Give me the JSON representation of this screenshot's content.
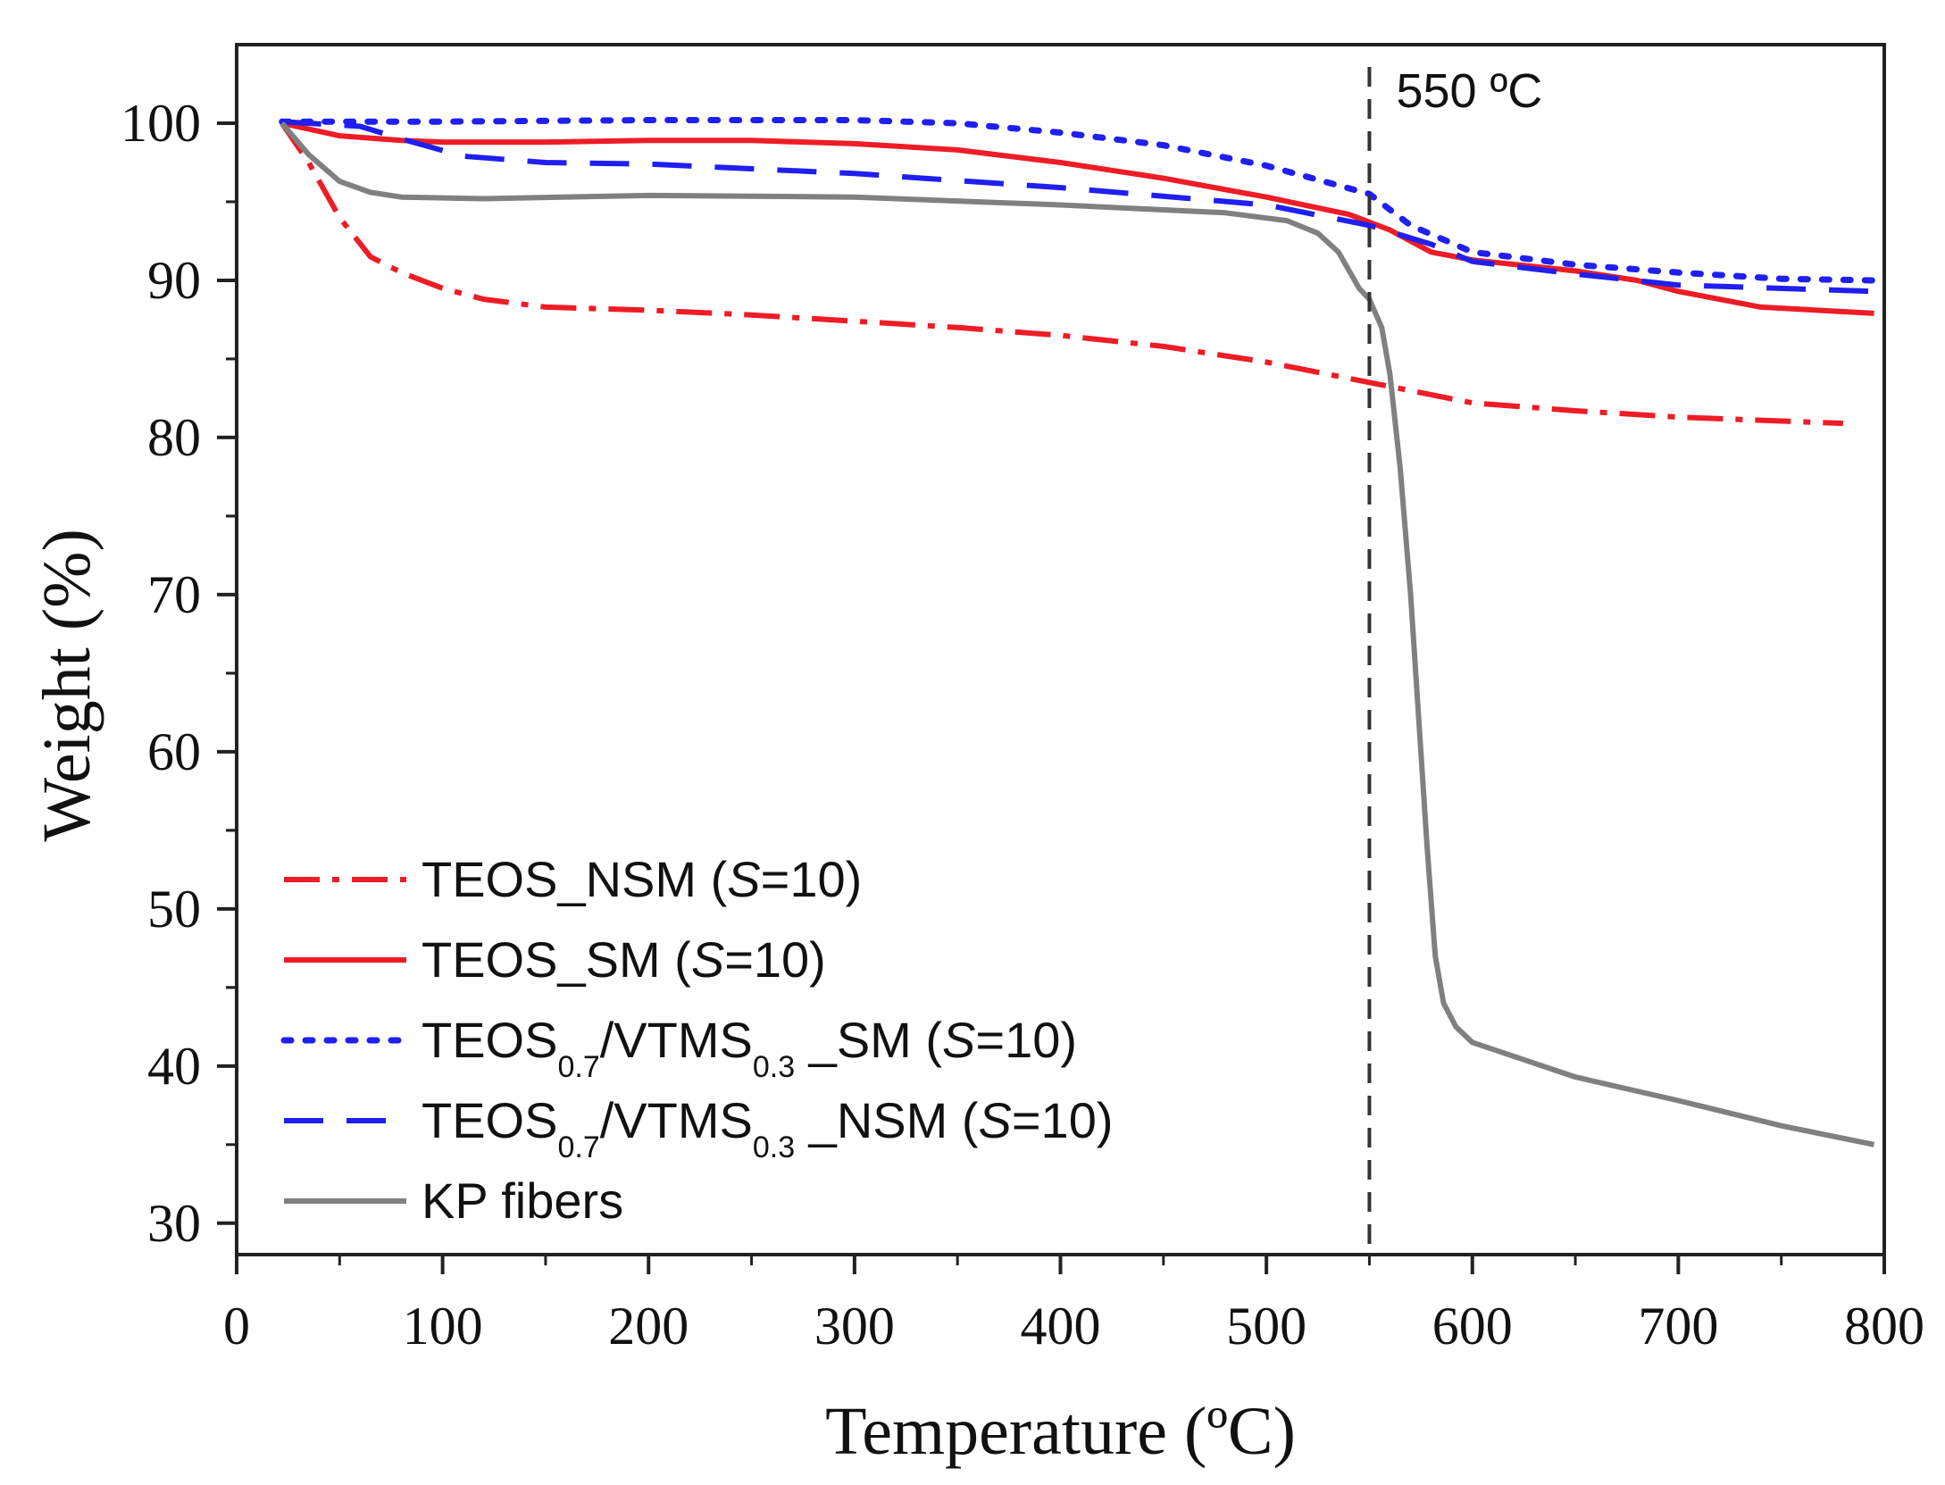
{
  "chart_data": {
    "type": "line",
    "title": "",
    "xlabel": "Temperature (ºC)",
    "ylabel": "Weight (%)",
    "xlim": [
      0,
      800
    ],
    "ylim": [
      28,
      105
    ],
    "xticks": [
      0,
      100,
      200,
      300,
      400,
      500,
      600,
      700,
      800
    ],
    "yticks": [
      30,
      40,
      50,
      60,
      70,
      80,
      90,
      100
    ],
    "grid": false,
    "legend_position": "bottom-left",
    "annotation": {
      "label": "550 ºC",
      "x": 550
    },
    "series": [
      {
        "name": "TEOS_NSM (S=10)",
        "legend": {
          "base": "TEOS_NSM (",
          "italic": "S",
          "rest": "=10)"
        },
        "color": "#ee1c25",
        "dash": "dashdot",
        "points": [
          [
            22,
            100
          ],
          [
            35,
            97.5
          ],
          [
            50,
            94
          ],
          [
            65,
            91.5
          ],
          [
            80,
            90.5
          ],
          [
            100,
            89.5
          ],
          [
            120,
            88.8
          ],
          [
            150,
            88.3
          ],
          [
            200,
            88.1
          ],
          [
            250,
            87.8
          ],
          [
            300,
            87.4
          ],
          [
            350,
            87
          ],
          [
            400,
            86.5
          ],
          [
            450,
            85.8
          ],
          [
            500,
            84.8
          ],
          [
            550,
            83.5
          ],
          [
            600,
            82.2
          ],
          [
            650,
            81.7
          ],
          [
            700,
            81.3
          ],
          [
            780,
            80.9
          ]
        ]
      },
      {
        "name": "TEOS_SM (S=10)",
        "legend": {
          "base": "TEOS_SM (",
          "italic": "S",
          "rest": "=10)"
        },
        "color": "#ee1c25",
        "dash": "solid",
        "points": [
          [
            22,
            100
          ],
          [
            50,
            99.2
          ],
          [
            80,
            98.9
          ],
          [
            100,
            98.8
          ],
          [
            150,
            98.8
          ],
          [
            200,
            98.9
          ],
          [
            250,
            98.9
          ],
          [
            300,
            98.7
          ],
          [
            350,
            98.3
          ],
          [
            400,
            97.5
          ],
          [
            450,
            96.5
          ],
          [
            500,
            95.3
          ],
          [
            540,
            94.2
          ],
          [
            560,
            93.2
          ],
          [
            580,
            91.8
          ],
          [
            600,
            91.3
          ],
          [
            650,
            90.6
          ],
          [
            680,
            90
          ],
          [
            700,
            89.3
          ],
          [
            740,
            88.3
          ],
          [
            795,
            87.9
          ]
        ]
      },
      {
        "name": "TEOS0.7/VTMS0.3 _SM (S=10)",
        "legend": {
          "base": "TEOS",
          "sub1": "0.7",
          "mid": "/VTMS",
          "sub2": "0.3",
          "tail": " _SM (",
          "italic": "S",
          "rest": "=10)"
        },
        "color": "#1f1ff0",
        "dash": "dotted",
        "points": [
          [
            22,
            100.1
          ],
          [
            100,
            100.1
          ],
          [
            200,
            100.2
          ],
          [
            300,
            100.2
          ],
          [
            350,
            100
          ],
          [
            400,
            99.4
          ],
          [
            450,
            98.6
          ],
          [
            500,
            97.3
          ],
          [
            550,
            95.5
          ],
          [
            570,
            93.5
          ],
          [
            600,
            91.8
          ],
          [
            650,
            91
          ],
          [
            700,
            90.5
          ],
          [
            750,
            90.1
          ],
          [
            795,
            90
          ]
        ]
      },
      {
        "name": "TEOS0.7/VTMS0.3 _NSM (S=10)",
        "legend": {
          "base": "TEOS",
          "sub1": "0.7",
          "mid": "/VTMS",
          "sub2": "0.3",
          "tail": " _NSM (",
          "italic": "S",
          "rest": "=10)"
        },
        "color": "#1f1ff0",
        "dash": "dashed",
        "points": [
          [
            22,
            100.1
          ],
          [
            60,
            99.8
          ],
          [
            80,
            99
          ],
          [
            110,
            97.9
          ],
          [
            150,
            97.5
          ],
          [
            200,
            97.4
          ],
          [
            300,
            96.8
          ],
          [
            400,
            95.9
          ],
          [
            500,
            94.8
          ],
          [
            550,
            93.5
          ],
          [
            580,
            92.3
          ],
          [
            600,
            91.2
          ],
          [
            650,
            90.4
          ],
          [
            700,
            89.7
          ],
          [
            795,
            89.3
          ]
        ]
      },
      {
        "name": "KP fibers",
        "legend": {
          "base": "KP fibers"
        },
        "color": "#808080",
        "dash": "solid",
        "points": [
          [
            22,
            100
          ],
          [
            35,
            98
          ],
          [
            50,
            96.3
          ],
          [
            65,
            95.6
          ],
          [
            80,
            95.3
          ],
          [
            120,
            95.2
          ],
          [
            200,
            95.4
          ],
          [
            300,
            95.3
          ],
          [
            400,
            94.8
          ],
          [
            480,
            94.3
          ],
          [
            510,
            93.8
          ],
          [
            525,
            93
          ],
          [
            535,
            91.8
          ],
          [
            545,
            89.5
          ],
          [
            550,
            88.8
          ],
          [
            556,
            87
          ],
          [
            560,
            84
          ],
          [
            565,
            78
          ],
          [
            570,
            70
          ],
          [
            574,
            62
          ],
          [
            578,
            54
          ],
          [
            582,
            47
          ],
          [
            586,
            44
          ],
          [
            592,
            42.5
          ],
          [
            600,
            41.5
          ],
          [
            650,
            39.3
          ],
          [
            700,
            37.8
          ],
          [
            750,
            36.2
          ],
          [
            795,
            35
          ]
        ]
      }
    ]
  }
}
